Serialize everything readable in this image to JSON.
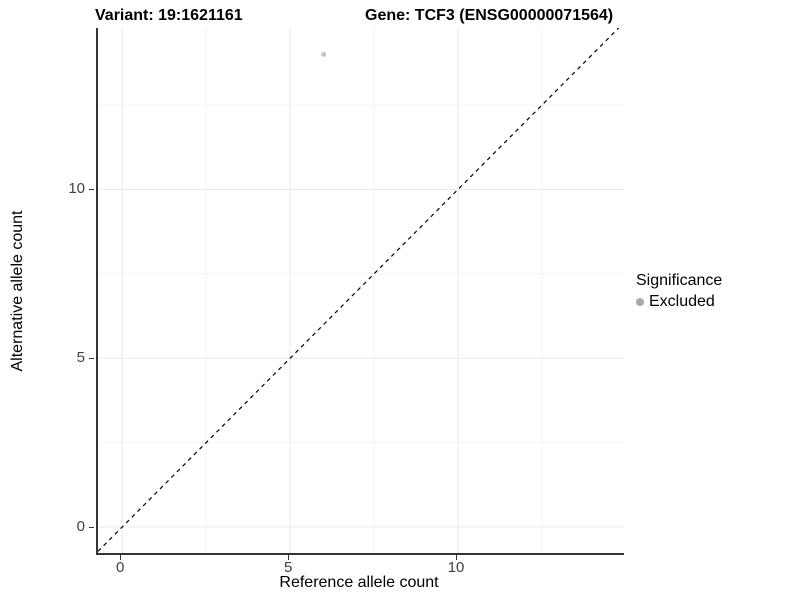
{
  "titles": {
    "variant": "Variant: 19:1621161",
    "gene": "Gene: TCF3 (ENSG00000071564)"
  },
  "chart_data": {
    "type": "scatter",
    "xlabel": "Reference allele count",
    "ylabel": "Alternative allele count",
    "xlim": [
      -0.72,
      14.94
    ],
    "ylim": [
      -0.77,
      14.78
    ],
    "x_ticks": [
      0,
      5,
      10
    ],
    "y_ticks": [
      0,
      5,
      10
    ],
    "x_minor_ticks": [
      2.5,
      7.5,
      12.5
    ],
    "y_minor_ticks": [
      2.5,
      7.5,
      12.5
    ],
    "grid": true,
    "series": [
      {
        "name": "Excluded",
        "color": "#c4c4c4",
        "points": [
          {
            "x": 6,
            "y": 14
          }
        ]
      }
    ],
    "identity_line": {
      "equation": "y = x",
      "style": "dashed",
      "color": "#000000"
    },
    "legend": {
      "title": "Significance",
      "position": "right",
      "entries": [
        {
          "label": "Excluded",
          "color": "#a8a8a8"
        }
      ]
    },
    "colors": {
      "grid_major": "#e9e9e9",
      "grid_minor": "#f4f4f4",
      "axis_line": "#333333",
      "tick_text": "#404040"
    }
  }
}
